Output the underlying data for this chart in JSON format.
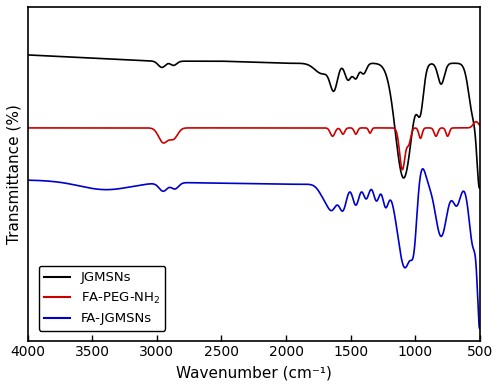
{
  "title": "",
  "xlabel": "Wavenumber (cm⁻¹)",
  "ylabel": "Transmittance (%)",
  "xlim": [
    500,
    4000
  ],
  "colors": {
    "JGMSNs": "#000000",
    "FA-PEG-NH2": "#cc0000",
    "FA-JGMSNs": "#0000cc"
  },
  "xticks": [
    4000,
    3500,
    3000,
    2500,
    2000,
    1500,
    1000,
    500
  ],
  "figsize": [
    5.0,
    3.87
  ],
  "dpi": 100
}
